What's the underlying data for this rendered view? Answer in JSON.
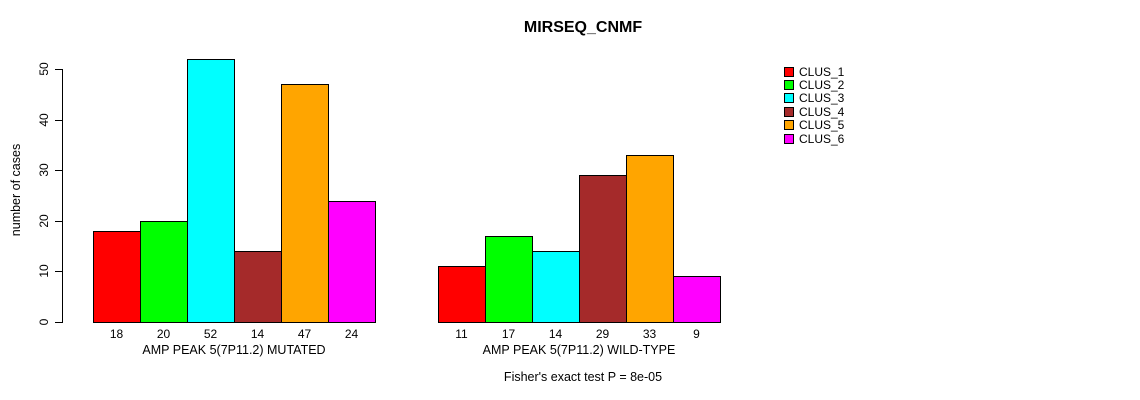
{
  "chart_data": {
    "type": "bar",
    "title": "MIRSEQ_CNMF",
    "ylabel": "number of cases",
    "xlabel": "",
    "ylim": [
      0,
      52
    ],
    "yticks": [
      0,
      10,
      20,
      30,
      40,
      50
    ],
    "grid": false,
    "legend_position": "right",
    "series": [
      {
        "name": "CLUS_1",
        "color": "#FF0000"
      },
      {
        "name": "CLUS_2",
        "color": "#00FF00"
      },
      {
        "name": "CLUS_3",
        "color": "#00FFFF"
      },
      {
        "name": "CLUS_4",
        "color": "#A52A2A"
      },
      {
        "name": "CLUS_5",
        "color": "#FFA500"
      },
      {
        "name": "CLUS_6",
        "color": "#FF00FF"
      }
    ],
    "groups": [
      {
        "label": "AMP PEAK 5(7P11.2) MUTATED",
        "values": [
          18,
          20,
          52,
          14,
          47,
          24
        ]
      },
      {
        "label": "AMP PEAK 5(7P11.2) WILD-TYPE",
        "values": [
          11,
          17,
          14,
          29,
          33,
          9
        ]
      }
    ],
    "caption": "Fisher's exact test P = 8e-05"
  }
}
